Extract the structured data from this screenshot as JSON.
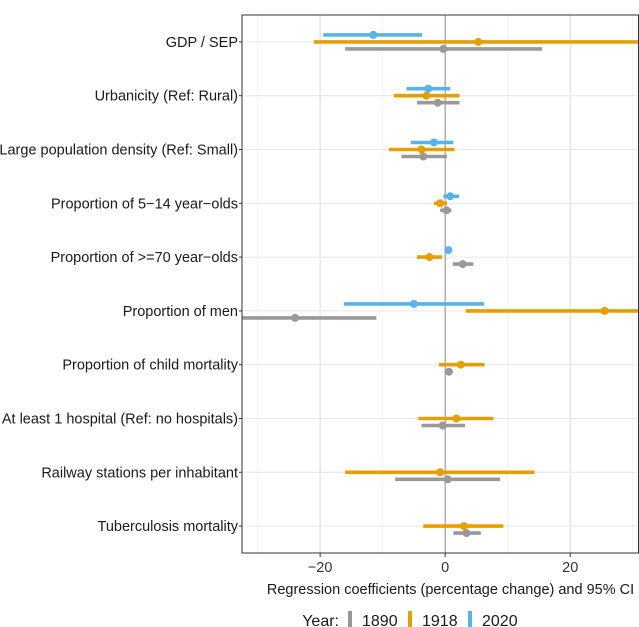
{
  "chart_data": {
    "type": "forest",
    "xlabel": "Regression coefficients (percentage change) and 95% CI",
    "xlim": [
      -32.5,
      31
    ],
    "xticks": [
      -20,
      0,
      20
    ],
    "xtick_labels": [
      "−20",
      "0",
      "20"
    ],
    "grid": true,
    "legend_position": "bottom",
    "legend_title": "Year:",
    "categories": [
      "GDP / SEP",
      "Urbanicity (Ref: Rural)",
      "Large population density (Ref: Small)",
      "Proportion of 5−14 year−olds",
      "Proportion of >=70 year−olds",
      "Proportion of men",
      "Proportion of child mortality",
      "At least 1 hospital (Ref: no hospitals)",
      "Railway stations per inhabitant",
      "Tuberculosis mortality"
    ],
    "series": [
      {
        "name": "1890",
        "color": "#999999",
        "points": [
          {
            "est": -0.3,
            "lo": -16,
            "hi": 15.5
          },
          {
            "est": -1.2,
            "lo": -4.5,
            "hi": 2.3
          },
          {
            "est": -3.5,
            "lo": -7,
            "hi": 0.3
          },
          {
            "est": 0.2,
            "lo": -0.8,
            "hi": 1.0
          },
          {
            "est": 2.8,
            "lo": 1.2,
            "hi": 4.5
          },
          {
            "est": -24,
            "lo": -33,
            "hi": -11
          },
          {
            "est": 0.6,
            "lo": 0,
            "hi": 1.2
          },
          {
            "est": -0.4,
            "lo": -3.8,
            "hi": 3.2
          },
          {
            "est": 0.4,
            "lo": -8,
            "hi": 8.8
          },
          {
            "est": 3.4,
            "lo": 1.3,
            "hi": 5.7
          }
        ]
      },
      {
        "name": "1918",
        "color": "#E69F00",
        "points": [
          {
            "est": 5.3,
            "lo": -21,
            "hi": 31
          },
          {
            "est": -3.0,
            "lo": -8.2,
            "hi": 2.3
          },
          {
            "est": -3.8,
            "lo": -9,
            "hi": 1.5
          },
          {
            "est": -0.8,
            "lo": -1.8,
            "hi": 0.3
          },
          {
            "est": -2.5,
            "lo": -4.5,
            "hi": -0.5
          },
          {
            "est": 25.5,
            "lo": 3.3,
            "hi": 31
          },
          {
            "est": 2.5,
            "lo": -1,
            "hi": 6.3
          },
          {
            "est": 1.8,
            "lo": -4.3,
            "hi": 7.7
          },
          {
            "est": -0.8,
            "lo": -16,
            "hi": 14.3
          },
          {
            "est": 3.0,
            "lo": -3.5,
            "hi": 9.3
          }
        ]
      },
      {
        "name": "2020",
        "color": "#56B4E9",
        "points": [
          {
            "est": -11.5,
            "lo": -19.5,
            "hi": -3.7
          },
          {
            "est": -2.7,
            "lo": -6.2,
            "hi": 0.8
          },
          {
            "est": -1.8,
            "lo": -5.5,
            "hi": 1.3
          },
          {
            "est": 0.8,
            "lo": -0.3,
            "hi": 2.2
          },
          {
            "est": 0.5,
            "lo": 0,
            "hi": 1.0
          },
          {
            "est": -5.0,
            "lo": -16.2,
            "hi": 6.2
          },
          null,
          null,
          null,
          null
        ]
      }
    ]
  }
}
